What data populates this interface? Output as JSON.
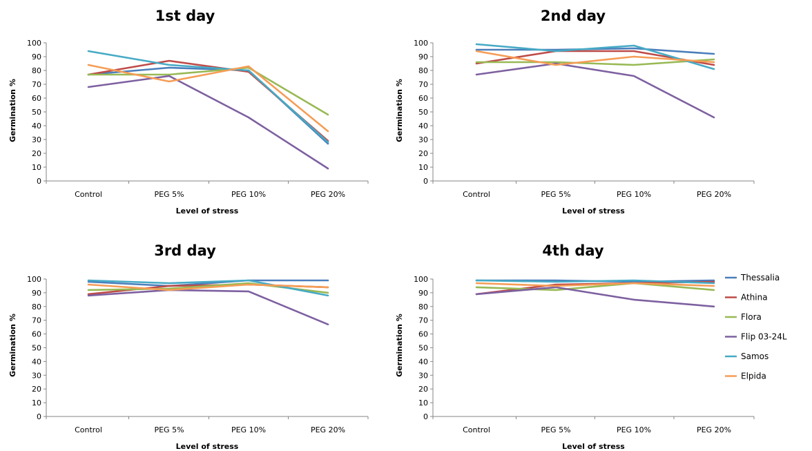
{
  "chart_data": [
    {
      "type": "line",
      "title": "1st day",
      "xlabel": "Level of stress",
      "ylabel": "Germination %",
      "categories": [
        "Control",
        "PEG 5%",
        "PEG 10%",
        "PEG 20%"
      ],
      "ylim": [
        0,
        100
      ],
      "yticks": [
        0,
        10,
        20,
        30,
        40,
        50,
        60,
        70,
        80,
        90,
        100
      ],
      "grid": false,
      "series": [
        {
          "name": "Thessalia",
          "values": [
            77,
            82,
            80,
            27
          ]
        },
        {
          "name": "Athina",
          "values": [
            77,
            87,
            79,
            29
          ]
        },
        {
          "name": "Flora",
          "values": [
            77,
            77,
            82,
            48
          ]
        },
        {
          "name": "Flip 03-24L",
          "values": [
            68,
            76,
            46,
            9
          ]
        },
        {
          "name": "Samos",
          "values": [
            94,
            84,
            80,
            28
          ]
        },
        {
          "name": "Elpida",
          "values": [
            84,
            72,
            83,
            36
          ]
        }
      ]
    },
    {
      "type": "line",
      "title": "2nd day",
      "xlabel": "Level of stress",
      "ylabel": "Germination %",
      "categories": [
        "Control",
        "PEG 5%",
        "PEG 10%",
        "PEG 20%"
      ],
      "ylim": [
        0,
        100
      ],
      "yticks": [
        0,
        10,
        20,
        30,
        40,
        50,
        60,
        70,
        80,
        90,
        100
      ],
      "grid": false,
      "series": [
        {
          "name": "Thessalia",
          "values": [
            95,
            95,
            96,
            92
          ]
        },
        {
          "name": "Athina",
          "values": [
            85,
            94,
            94,
            84
          ]
        },
        {
          "name": "Flora",
          "values": [
            86,
            86,
            84,
            88
          ]
        },
        {
          "name": "Flip 03-24L",
          "values": [
            77,
            85,
            76,
            46
          ]
        },
        {
          "name": "Samos",
          "values": [
            99,
            94,
            98,
            81
          ]
        },
        {
          "name": "Elpida",
          "values": [
            94,
            84,
            90,
            86
          ]
        }
      ]
    },
    {
      "type": "line",
      "title": "3rd day",
      "xlabel": "Level of stress",
      "ylabel": "Germination %",
      "categories": [
        "Control",
        "PEG 5%",
        "PEG 10%",
        "PEG 20%"
      ],
      "ylim": [
        0,
        100
      ],
      "yticks": [
        0,
        10,
        20,
        30,
        40,
        50,
        60,
        70,
        80,
        90,
        100
      ],
      "grid": false,
      "series": [
        {
          "name": "Thessalia",
          "values": [
            98,
            95,
            99,
            99
          ]
        },
        {
          "name": "Athina",
          "values": [
            89,
            95,
            96,
            94
          ]
        },
        {
          "name": "Flora",
          "values": [
            92,
            93,
            97,
            90
          ]
        },
        {
          "name": "Flip 03-24L",
          "values": [
            88,
            92,
            91,
            67
          ]
        },
        {
          "name": "Samos",
          "values": [
            99,
            97,
            99,
            88
          ]
        },
        {
          "name": "Elpida",
          "values": [
            96,
            92,
            96,
            94
          ]
        }
      ]
    },
    {
      "type": "line",
      "title": "4th day",
      "xlabel": "Level of stress",
      "ylabel": "Germination %",
      "categories": [
        "Control",
        "PEG 5%",
        "PEG 10%",
        "PEG 20%"
      ],
      "ylim": [
        0,
        100
      ],
      "yticks": [
        0,
        10,
        20,
        30,
        40,
        50,
        60,
        70,
        80,
        90,
        100
      ],
      "grid": false,
      "series": [
        {
          "name": "Thessalia",
          "values": [
            99,
            99,
            98,
            99
          ]
        },
        {
          "name": "Athina",
          "values": [
            89,
            96,
            97,
            98
          ]
        },
        {
          "name": "Flora",
          "values": [
            94,
            92,
            97,
            92
          ]
        },
        {
          "name": "Flip 03-24L",
          "values": [
            89,
            94,
            85,
            80
          ]
        },
        {
          "name": "Samos",
          "values": [
            99,
            98,
            99,
            97
          ]
        },
        {
          "name": "Elpida",
          "values": [
            97,
            95,
            97,
            95
          ]
        }
      ]
    }
  ],
  "legend": {
    "placement": "right",
    "items": [
      {
        "name": "Thessalia",
        "color": "#4a7ebb"
      },
      {
        "name": "Athina",
        "color": "#be4b48"
      },
      {
        "name": "Flora",
        "color": "#98b954"
      },
      {
        "name": "Flip 03-24L",
        "color": "#7d60a0"
      },
      {
        "name": "Samos",
        "color": "#46aac5"
      },
      {
        "name": "Elpida",
        "color": "#f59d56"
      }
    ]
  }
}
